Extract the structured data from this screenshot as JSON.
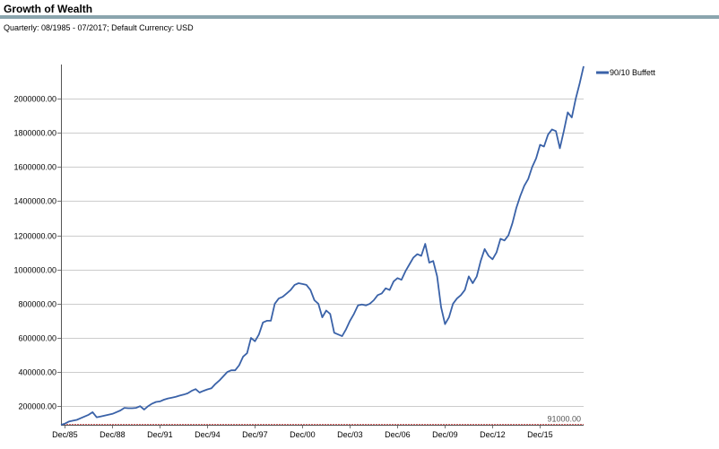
{
  "header": {
    "title": "Growth of Wealth",
    "subtitle": "Quarterly: 08/1985 - 07/2017; Default Currency: USD"
  },
  "colors": {
    "header_rule": "#8aa5ae",
    "series": "#3a62a8",
    "baseline": "#cc3333",
    "grid": "#9a9a9a"
  },
  "chart_data": {
    "type": "line",
    "title": "",
    "xlabel": "",
    "ylabel": "",
    "legend": "right",
    "grid": true,
    "ylim": [
      91000,
      2200000
    ],
    "y_ticks": [
      {
        "value": 200000,
        "label": "200000.00"
      },
      {
        "value": 400000,
        "label": "400000.00"
      },
      {
        "value": 600000,
        "label": "600000.00"
      },
      {
        "value": 800000,
        "label": "800000.00"
      },
      {
        "value": 1000000,
        "label": "1000000.00"
      },
      {
        "value": 1200000,
        "label": "1200000.00"
      },
      {
        "value": 1400000,
        "label": "1400000.00"
      },
      {
        "value": 1600000,
        "label": "1600000.00"
      },
      {
        "value": 1800000,
        "label": "1800000.00"
      },
      {
        "value": 2000000,
        "label": "2000000.00"
      }
    ],
    "x_ticks": [
      "Dec/85",
      "Dec/88",
      "Dec/91",
      "Dec/94",
      "Dec/97",
      "Dec/00",
      "Dec/03",
      "Dec/06",
      "Dec/09",
      "Dec/12",
      "Dec/15"
    ],
    "baseline": {
      "value": 91000,
      "label": "91000.00"
    },
    "series": [
      {
        "name": "90/10 Buffett",
        "values": [
          91000,
          98000,
          110000,
          115000,
          120000,
          130000,
          140000,
          150000,
          165000,
          135000,
          140000,
          145000,
          150000,
          155000,
          165000,
          175000,
          190000,
          188000,
          188000,
          190000,
          200000,
          180000,
          200000,
          215000,
          225000,
          228000,
          238000,
          245000,
          250000,
          255000,
          262000,
          268000,
          275000,
          290000,
          300000,
          280000,
          290000,
          298000,
          305000,
          330000,
          350000,
          375000,
          400000,
          410000,
          410000,
          440000,
          490000,
          510000,
          600000,
          580000,
          620000,
          690000,
          700000,
          700000,
          800000,
          830000,
          840000,
          860000,
          880000,
          910000,
          920000,
          915000,
          910000,
          880000,
          820000,
          800000,
          720000,
          760000,
          740000,
          630000,
          620000,
          610000,
          650000,
          700000,
          740000,
          790000,
          795000,
          790000,
          800000,
          820000,
          850000,
          860000,
          890000,
          880000,
          930000,
          950000,
          940000,
          990000,
          1030000,
          1070000,
          1090000,
          1080000,
          1150000,
          1040000,
          1050000,
          960000,
          780000,
          680000,
          720000,
          800000,
          830000,
          850000,
          880000,
          960000,
          920000,
          960000,
          1050000,
          1120000,
          1080000,
          1060000,
          1100000,
          1180000,
          1170000,
          1200000,
          1270000,
          1360000,
          1430000,
          1490000,
          1530000,
          1600000,
          1650000,
          1730000,
          1720000,
          1790000,
          1820000,
          1810000,
          1710000,
          1810000,
          1920000,
          1890000,
          2000000,
          2090000,
          2190000
        ]
      }
    ]
  }
}
